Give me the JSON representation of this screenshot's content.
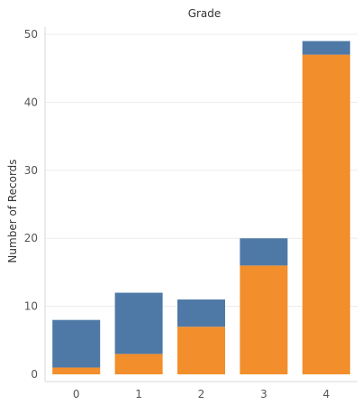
{
  "chart_data": {
    "type": "bar",
    "stacked": true,
    "title": "Grade",
    "xlabel": "",
    "ylabel": "Number of Records",
    "categories": [
      "0",
      "1",
      "2",
      "3",
      "4"
    ],
    "series": [
      {
        "values": [
          1,
          3,
          7,
          16,
          47
        ],
        "color": "#f28e2b"
      },
      {
        "values": [
          7,
          9,
          4,
          4,
          2
        ],
        "color": "#4e79a7"
      }
    ],
    "yticks": [
      "0",
      "10",
      "20",
      "30",
      "40",
      "50"
    ],
    "ylim": [
      0,
      50
    ],
    "grid": true,
    "legend": "none"
  }
}
